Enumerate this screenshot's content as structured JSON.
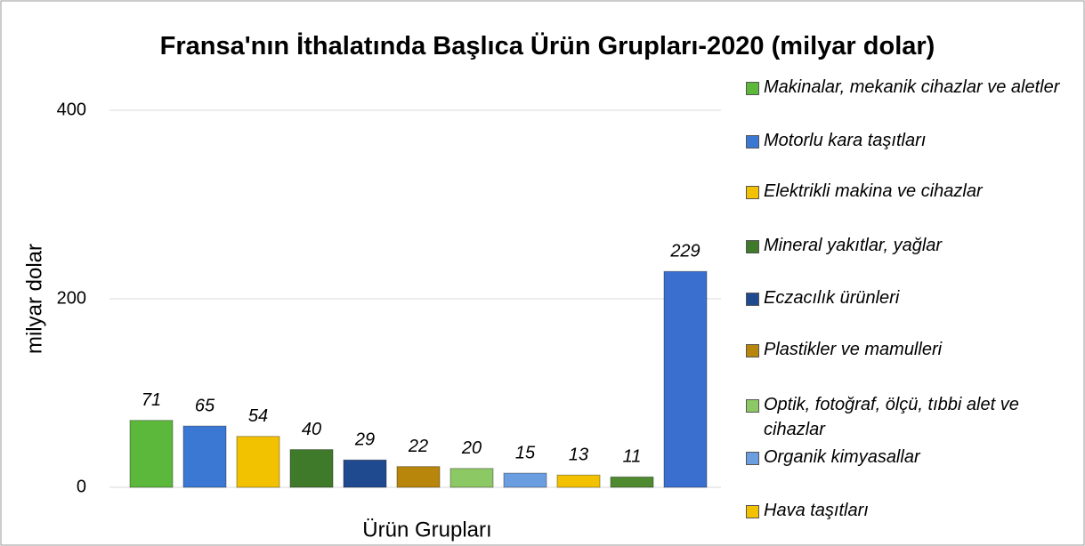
{
  "chart_data": {
    "type": "bar",
    "title": "Fransa'nın İthalatında Başlıca Ürün Grupları-2020 (milyar dolar)",
    "x_label": "Ürün Grupları",
    "y_label": "milyar dolar",
    "categories": [
      "Makinalar, mekanik cihazlar ve aletler",
      "Motorlu kara taşıtları",
      "Elektrikli makina ve cihazlar",
      "Mineral yakıtlar, yağlar",
      "Eczacılık ürünleri",
      "Plastikler ve mamulleri",
      "Optik, fotoğraf, ölçü, tıbbi alet ve cihazlar",
      "Organik kimyasallar",
      "Hava taşıtları",
      null,
      null
    ],
    "values": [
      71,
      65,
      54,
      40,
      29,
      22,
      20,
      15,
      13,
      11,
      229
    ],
    "colors": [
      "#5cb83a",
      "#3a78d4",
      "#f2c200",
      "#3f7a2a",
      "#1f4a8f",
      "#b8860b",
      "#8cc864",
      "#6a9ee0",
      "#f2c200",
      "#4f8a30",
      "#3a6fd0"
    ],
    "ylim": [
      0,
      400
    ],
    "yticks": [
      0,
      200,
      400
    ],
    "grid": true
  }
}
